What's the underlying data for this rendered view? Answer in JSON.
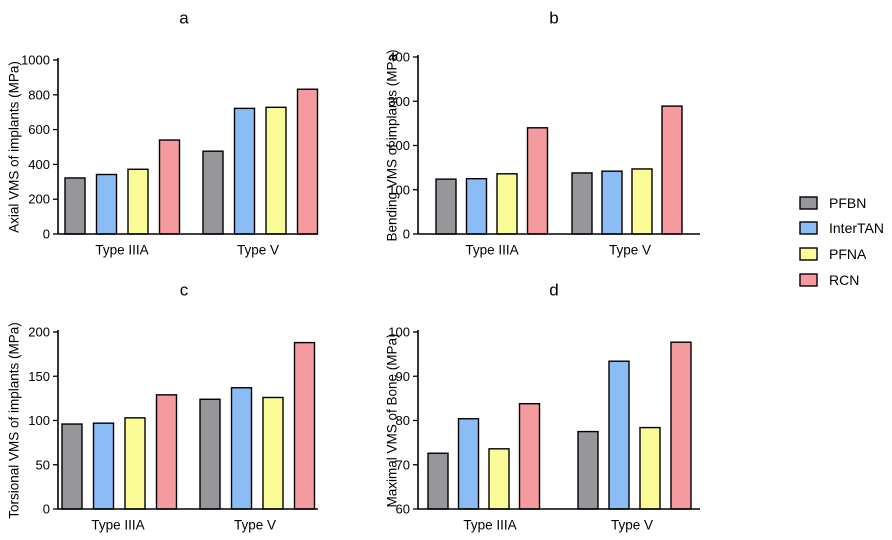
{
  "legend": {
    "items": [
      {
        "name": "PFBN",
        "color": "#96969b"
      },
      {
        "name": "InterTAN",
        "color": "#8cbcf5"
      },
      {
        "name": "PFNA",
        "color": "#fafa96"
      },
      {
        "name": "RCN",
        "color": "#f59a9e"
      }
    ]
  },
  "chart_data": [
    {
      "type": "bar",
      "title": "a",
      "xlabel": "",
      "ylabel": "Axial VMS of implants (MPa)",
      "categories": [
        "Type IIIA",
        "Type V"
      ],
      "series": [
        {
          "name": "PFBN",
          "values": [
            322,
            476
          ]
        },
        {
          "name": "InterTAN",
          "values": [
            342,
            722
          ]
        },
        {
          "name": "PFNA",
          "values": [
            372,
            728
          ]
        },
        {
          "name": "RCN",
          "values": [
            540,
            832
          ]
        }
      ],
      "ylim": [
        0,
        1000
      ],
      "yticks": [
        "0",
        "200",
        "400",
        "600",
        "800",
        "1000"
      ]
    },
    {
      "type": "bar",
      "title": "b",
      "xlabel": "",
      "ylabel": "Bending VMS of implants (MPa)",
      "categories": [
        "Type IIIA",
        "Type V"
      ],
      "series": [
        {
          "name": "PFBN",
          "values": [
            124,
            138
          ]
        },
        {
          "name": "InterTAN",
          "values": [
            125,
            142
          ]
        },
        {
          "name": "PFNA",
          "values": [
            136,
            147
          ]
        },
        {
          "name": "RCN",
          "values": [
            240,
            289
          ]
        }
      ],
      "ylim": [
        0,
        400
      ],
      "yticks": [
        "0",
        "100",
        "200",
        "300",
        "400"
      ]
    },
    {
      "type": "bar",
      "title": "c",
      "xlabel": "",
      "ylabel": "Torsional VMS of implants (MPa)",
      "categories": [
        "Type IIIA",
        "Type V"
      ],
      "series": [
        {
          "name": "PFBN",
          "values": [
            96,
            124
          ]
        },
        {
          "name": "InterTAN",
          "values": [
            97,
            137
          ]
        },
        {
          "name": "PFNA",
          "values": [
            103,
            126
          ]
        },
        {
          "name": "RCN",
          "values": [
            129,
            188
          ]
        }
      ],
      "ylim": [
        0,
        200
      ],
      "yticks": [
        "0",
        "50",
        "100",
        "150",
        "200"
      ]
    },
    {
      "type": "bar",
      "title": "d",
      "xlabel": "",
      "ylabel": "Maximal VMS of Bone (MPa)",
      "categories": [
        "Type IIIA",
        "Type V"
      ],
      "series": [
        {
          "name": "PFBN",
          "values": [
            72.6,
            77.5
          ]
        },
        {
          "name": "InterTAN",
          "values": [
            80.4,
            93.4
          ]
        },
        {
          "name": "PFNA",
          "values": [
            73.6,
            78.4
          ]
        },
        {
          "name": "RCN",
          "values": [
            83.8,
            97.7
          ]
        }
      ],
      "ylim": [
        60,
        100
      ],
      "yticks": [
        "60",
        "70",
        "80",
        "90",
        "100"
      ]
    }
  ]
}
